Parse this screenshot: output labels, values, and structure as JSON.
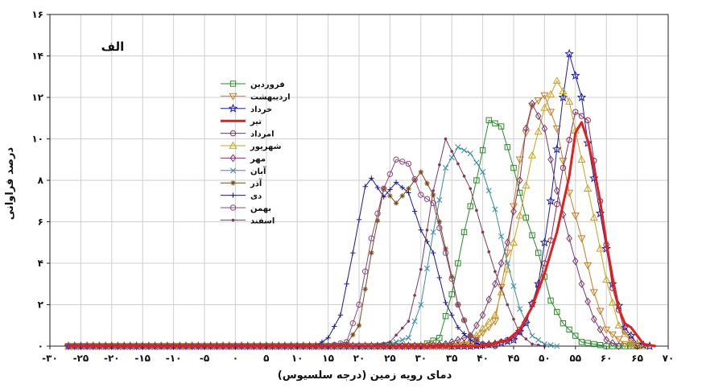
{
  "chart_data": {
    "type": "line",
    "panel_label": "الف",
    "xlabel": "دمای رویه زمین (درجه سلسیوس)",
    "ylabel": "درصد فراوانی",
    "xlim": [
      -30,
      70
    ],
    "ylim": [
      0,
      16
    ],
    "xticks": [
      -30,
      -25,
      -20,
      -15,
      -10,
      -5,
      0,
      5,
      10,
      15,
      20,
      25,
      30,
      35,
      40,
      45,
      50,
      55,
      60,
      65,
      70
    ],
    "xtick_labels": [
      "-۳۰",
      "-۲۵",
      "-۲۰",
      "-۱۵",
      "-۱۰",
      "-۵",
      "۰",
      "۵",
      "۱۰",
      "۱۵",
      "۲۰",
      "۲۵",
      "۳۰",
      "۳۵",
      "۴۰",
      "۴۵",
      "۵۰",
      "۵۵",
      "۶۰",
      "۶۵",
      "۷۰"
    ],
    "yticks": [
      0,
      2,
      4,
      6,
      8,
      10,
      12,
      14,
      16
    ],
    "ytick_labels": [
      "۰",
      "۲",
      "۴",
      "۶",
      "۸",
      "۱۰",
      "۱۲",
      "۱۴",
      "۱۶"
    ],
    "grid": true,
    "legend_position": "upper-left",
    "series": [
      {
        "name": "فروردین",
        "color": "#2a8a2a",
        "marker": "square",
        "width": 1,
        "points": [
          [
            -27,
            0
          ],
          [
            30,
            0
          ],
          [
            33,
            0.4
          ],
          [
            35,
            2.5
          ],
          [
            37,
            5.5
          ],
          [
            39,
            8
          ],
          [
            41,
            10.9
          ],
          [
            43,
            10.6
          ],
          [
            45,
            8.6
          ],
          [
            47,
            6.2
          ],
          [
            49,
            4.5
          ],
          [
            51,
            2.2
          ],
          [
            53,
            1.1
          ],
          [
            56,
            0.2
          ],
          [
            60,
            0
          ],
          [
            65,
            0
          ]
        ]
      },
      {
        "name": "اردیبهشت",
        "color": "#c87a20",
        "marker": "tri-down",
        "width": 1,
        "points": [
          [
            -27,
            0
          ],
          [
            35,
            0
          ],
          [
            38,
            0.1
          ],
          [
            42,
            1.2
          ],
          [
            44,
            4.5
          ],
          [
            46,
            9
          ],
          [
            48,
            11.6
          ],
          [
            50,
            12.1
          ],
          [
            52,
            10.5
          ],
          [
            54,
            7.4
          ],
          [
            56,
            5.2
          ],
          [
            58,
            2.6
          ],
          [
            60,
            0.8
          ],
          [
            63,
            0.1
          ],
          [
            65,
            0
          ]
        ]
      },
      {
        "name": "خرداد",
        "color": "#1a1aa0",
        "marker": "star",
        "width": 1,
        "points": [
          [
            -27,
            0
          ],
          [
            38,
            0
          ],
          [
            42,
            0.1
          ],
          [
            45,
            0.3
          ],
          [
            47,
            1.1
          ],
          [
            49,
            3
          ],
          [
            51,
            7
          ],
          [
            53,
            12
          ],
          [
            54,
            14.1
          ],
          [
            56,
            12
          ],
          [
            57,
            9.8
          ],
          [
            59,
            6.4
          ],
          [
            61,
            3
          ],
          [
            63,
            0.9
          ],
          [
            65,
            0.1
          ],
          [
            67,
            0
          ]
        ]
      },
      {
        "name": "تیر",
        "color": "#e02020",
        "marker": "none",
        "width": 3,
        "points": [
          [
            -27,
            0
          ],
          [
            40,
            0
          ],
          [
            44,
            0.3
          ],
          [
            46,
            0.8
          ],
          [
            48,
            1.9
          ],
          [
            50,
            3.5
          ],
          [
            52,
            5.5
          ],
          [
            54,
            8.2
          ],
          [
            55,
            10.3
          ],
          [
            56,
            10.8
          ],
          [
            57,
            9.9
          ],
          [
            58,
            8.6
          ],
          [
            59,
            7
          ],
          [
            60,
            5
          ],
          [
            61,
            3.3
          ],
          [
            62,
            1.8
          ],
          [
            63,
            1.1
          ],
          [
            64,
            0.9
          ],
          [
            66,
            0.1
          ],
          [
            68,
            0
          ]
        ]
      },
      {
        "name": "امرداد",
        "color": "#8c2a5a",
        "marker": "circle",
        "width": 1,
        "points": [
          [
            -27,
            0
          ],
          [
            38,
            0
          ],
          [
            42,
            0.1
          ],
          [
            45,
            0.4
          ],
          [
            47,
            1.2
          ],
          [
            49,
            2.9
          ],
          [
            51,
            5.1
          ],
          [
            53,
            8.6
          ],
          [
            55,
            11.3
          ],
          [
            57,
            10.9
          ],
          [
            59,
            7
          ],
          [
            61,
            2.8
          ],
          [
            63,
            0.7
          ],
          [
            65,
            0
          ]
        ]
      },
      {
        "name": "شهریور",
        "color": "#c8a020",
        "marker": "triangle",
        "width": 1,
        "points": [
          [
            -27,
            0
          ],
          [
            34,
            0
          ],
          [
            38,
            0.2
          ],
          [
            42,
            1.5
          ],
          [
            44,
            3.7
          ],
          [
            46,
            6.3
          ],
          [
            48,
            9.2
          ],
          [
            50,
            11.5
          ],
          [
            52,
            12.8
          ],
          [
            54,
            11.8
          ],
          [
            56,
            9
          ],
          [
            58,
            6.2
          ],
          [
            60,
            3.2
          ],
          [
            62,
            1
          ],
          [
            64,
            0.2
          ],
          [
            66,
            0
          ]
        ]
      },
      {
        "name": "مهر",
        "color": "#7a3a6a",
        "marker": "diamond",
        "width": 1,
        "points": [
          [
            -27,
            0
          ],
          [
            30,
            0
          ],
          [
            34,
            0.1
          ],
          [
            38,
            0.5
          ],
          [
            40,
            1.5
          ],
          [
            42,
            3
          ],
          [
            44,
            5
          ],
          [
            46,
            8
          ],
          [
            47,
            10.5
          ],
          [
            48,
            11.7
          ],
          [
            50,
            10.5
          ],
          [
            52,
            7.5
          ],
          [
            54,
            5.2
          ],
          [
            56,
            3
          ],
          [
            58,
            1.3
          ],
          [
            60,
            0.3
          ],
          [
            62,
            0
          ]
        ]
      },
      {
        "name": "آبان",
        "color": "#3a8aa0",
        "marker": "x",
        "width": 1,
        "points": [
          [
            -27,
            0
          ],
          [
            22,
            0
          ],
          [
            25,
            0.1
          ],
          [
            28,
            0.4
          ],
          [
            30,
            2
          ],
          [
            32,
            5.5
          ],
          [
            34,
            8.6
          ],
          [
            36,
            9.6
          ],
          [
            38,
            9.3
          ],
          [
            40,
            8.4
          ],
          [
            42,
            6.6
          ],
          [
            44,
            4
          ],
          [
            46,
            1.8
          ],
          [
            48,
            0.5
          ],
          [
            50,
            0.1
          ],
          [
            52,
            0
          ]
        ]
      },
      {
        "name": "آذر",
        "color": "#7a4a1a",
        "marker": "asterisk",
        "width": 1,
        "points": [
          [
            -27,
            0
          ],
          [
            15,
            0
          ],
          [
            18,
            0.1
          ],
          [
            20,
            1
          ],
          [
            22,
            4.5
          ],
          [
            24,
            7.6
          ],
          [
            26,
            6.9
          ],
          [
            28,
            7.6
          ],
          [
            30,
            8.4
          ],
          [
            32,
            7.3
          ],
          [
            34,
            4.7
          ],
          [
            36,
            2
          ],
          [
            38,
            0.5
          ],
          [
            40,
            0.1
          ],
          [
            42,
            0
          ]
        ]
      },
      {
        "name": "دی",
        "color": "#1a1a8a",
        "marker": "plus",
        "width": 1,
        "points": [
          [
            -27,
            0
          ],
          [
            13,
            0
          ],
          [
            15,
            0.4
          ],
          [
            17,
            1.5
          ],
          [
            19,
            4.5
          ],
          [
            21,
            7.7
          ],
          [
            22,
            8.1
          ],
          [
            24,
            7.2
          ],
          [
            26,
            7.9
          ],
          [
            28,
            7.4
          ],
          [
            30,
            5.6
          ],
          [
            32,
            4.5
          ],
          [
            34,
            2.1
          ],
          [
            36,
            0.9
          ],
          [
            38,
            0.3
          ],
          [
            40,
            0
          ]
        ]
      },
      {
        "name": "بهمن",
        "color": "#8a4a7a",
        "marker": "circle",
        "width": 1,
        "points": [
          [
            -27,
            0
          ],
          [
            15,
            0
          ],
          [
            18,
            0.2
          ],
          [
            20,
            2
          ],
          [
            22,
            5.2
          ],
          [
            24,
            7.6
          ],
          [
            26,
            9
          ],
          [
            28,
            8.8
          ],
          [
            30,
            7.3
          ],
          [
            32,
            6.9
          ],
          [
            34,
            4.5
          ],
          [
            36,
            2
          ],
          [
            38,
            0.5
          ],
          [
            40,
            0.1
          ],
          [
            42,
            0
          ]
        ]
      },
      {
        "name": "اسفند",
        "color": "#7a3a5a",
        "marker": "dot",
        "width": 1,
        "points": [
          [
            -27,
            0
          ],
          [
            22,
            0
          ],
          [
            25,
            0.2
          ],
          [
            28,
            1.2
          ],
          [
            30,
            3.7
          ],
          [
            32,
            7.5
          ],
          [
            34,
            10
          ],
          [
            36,
            8.8
          ],
          [
            38,
            7.6
          ],
          [
            40,
            5.5
          ],
          [
            42,
            3.6
          ],
          [
            44,
            2
          ],
          [
            46,
            0.6
          ],
          [
            48,
            0.1
          ],
          [
            50,
            0
          ]
        ]
      }
    ]
  }
}
